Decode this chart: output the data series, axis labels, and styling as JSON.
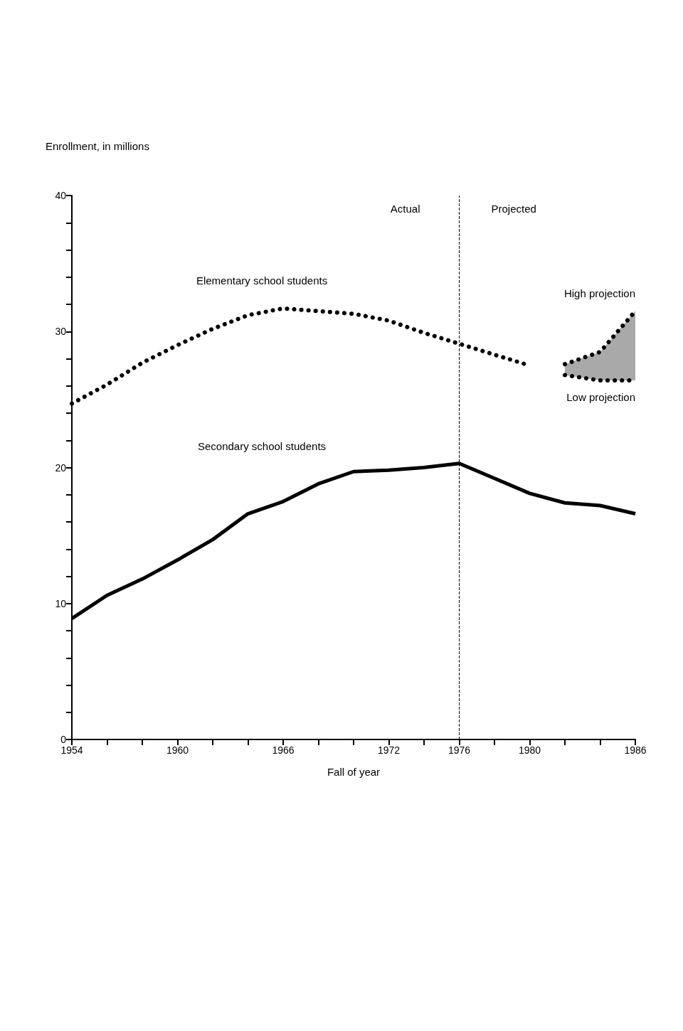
{
  "chart_data": {
    "type": "line",
    "xlabel": "Fall of year",
    "ylabel": "Enrollment, in millions",
    "xlim": [
      1954,
      1986
    ],
    "xticks": [
      1954,
      {
        "value": 1956,
        "label": null
      },
      {
        "value": 1958,
        "label": null
      },
      1960,
      {
        "value": 1962,
        "label": null
      },
      {
        "value": 1964,
        "label": null
      },
      1966,
      {
        "value": 1968,
        "label": null
      },
      {
        "value": 1970,
        "label": null
      },
      1972,
      {
        "value": 1974,
        "label": null
      },
      1976,
      {
        "value": 1978,
        "label": null
      },
      1980,
      {
        "value": 1982,
        "label": null
      },
      {
        "value": 1984,
        "label": null
      },
      1986
    ],
    "ylim": [
      0,
      40
    ],
    "yticks": [
      0,
      {
        "value": 2,
        "label": null
      },
      {
        "value": 4,
        "label": null
      },
      {
        "value": 6,
        "label": null
      },
      {
        "value": 8,
        "label": null
      },
      10,
      {
        "value": 12,
        "label": null
      },
      {
        "value": 14,
        "label": null
      },
      {
        "value": 16,
        "label": null
      },
      {
        "value": 18,
        "label": null
      },
      20,
      {
        "value": 22,
        "label": null
      },
      {
        "value": 24,
        "label": null
      },
      {
        "value": 26,
        "label": null
      },
      {
        "value": 28,
        "label": null
      },
      30,
      {
        "value": 32,
        "label": null
      },
      {
        "value": 34,
        "label": null
      },
      {
        "value": 36,
        "label": null
      },
      {
        "value": 38,
        "label": null
      },
      40
    ],
    "grid": false,
    "legend": false,
    "marker": "none",
    "series": [
      {
        "name": "Elementary school students",
        "color": "#000000",
        "line_style": "dotted",
        "x": [
          1954,
          1956,
          1958,
          1960,
          1962,
          1964,
          1966,
          1968,
          1970,
          1972,
          1974,
          1976,
          1978,
          1980
        ],
        "values": [
          24.7,
          26.1,
          27.7,
          29.0,
          30.2,
          31.2,
          31.7,
          31.5,
          31.3,
          30.8,
          29.9,
          29.1,
          28.3,
          27.5
        ]
      },
      {
        "name": "High projection",
        "color": "#000000",
        "line_style": "dotted",
        "x": [
          1982,
          1984,
          1986
        ],
        "values": [
          27.6,
          28.5,
          31.5
        ],
        "lower": [
          26.8,
          26.4,
          26.4
        ],
        "upper": [
          27.6,
          28.5,
          31.5
        ]
      },
      {
        "name": "Low projection",
        "color": "#000000",
        "line_style": "dotted",
        "x": [
          1982,
          1984,
          1986
        ],
        "values": [
          26.8,
          26.4,
          26.4
        ]
      },
      {
        "name": "Secondary school students",
        "color": "#000000",
        "line_style": "solid",
        "x": [
          1954,
          1956,
          1958,
          1960,
          1962,
          1964,
          1966,
          1968,
          1970,
          1972,
          1974,
          1976,
          1978,
          1980,
          1982,
          1984,
          1986
        ],
        "values": [
          8.9,
          10.6,
          11.8,
          13.2,
          14.7,
          16.6,
          17.5,
          18.8,
          19.7,
          19.8,
          20.0,
          20.3,
          19.2,
          18.1,
          17.4,
          17.2,
          16.6
        ]
      }
    ],
    "ref_lines": [
      {
        "axis": "x",
        "value": 1976,
        "label": null,
        "line_style": "dashed",
        "color": "#000000"
      }
    ],
    "annotations": [
      "Actual",
      "Projected"
    ]
  }
}
